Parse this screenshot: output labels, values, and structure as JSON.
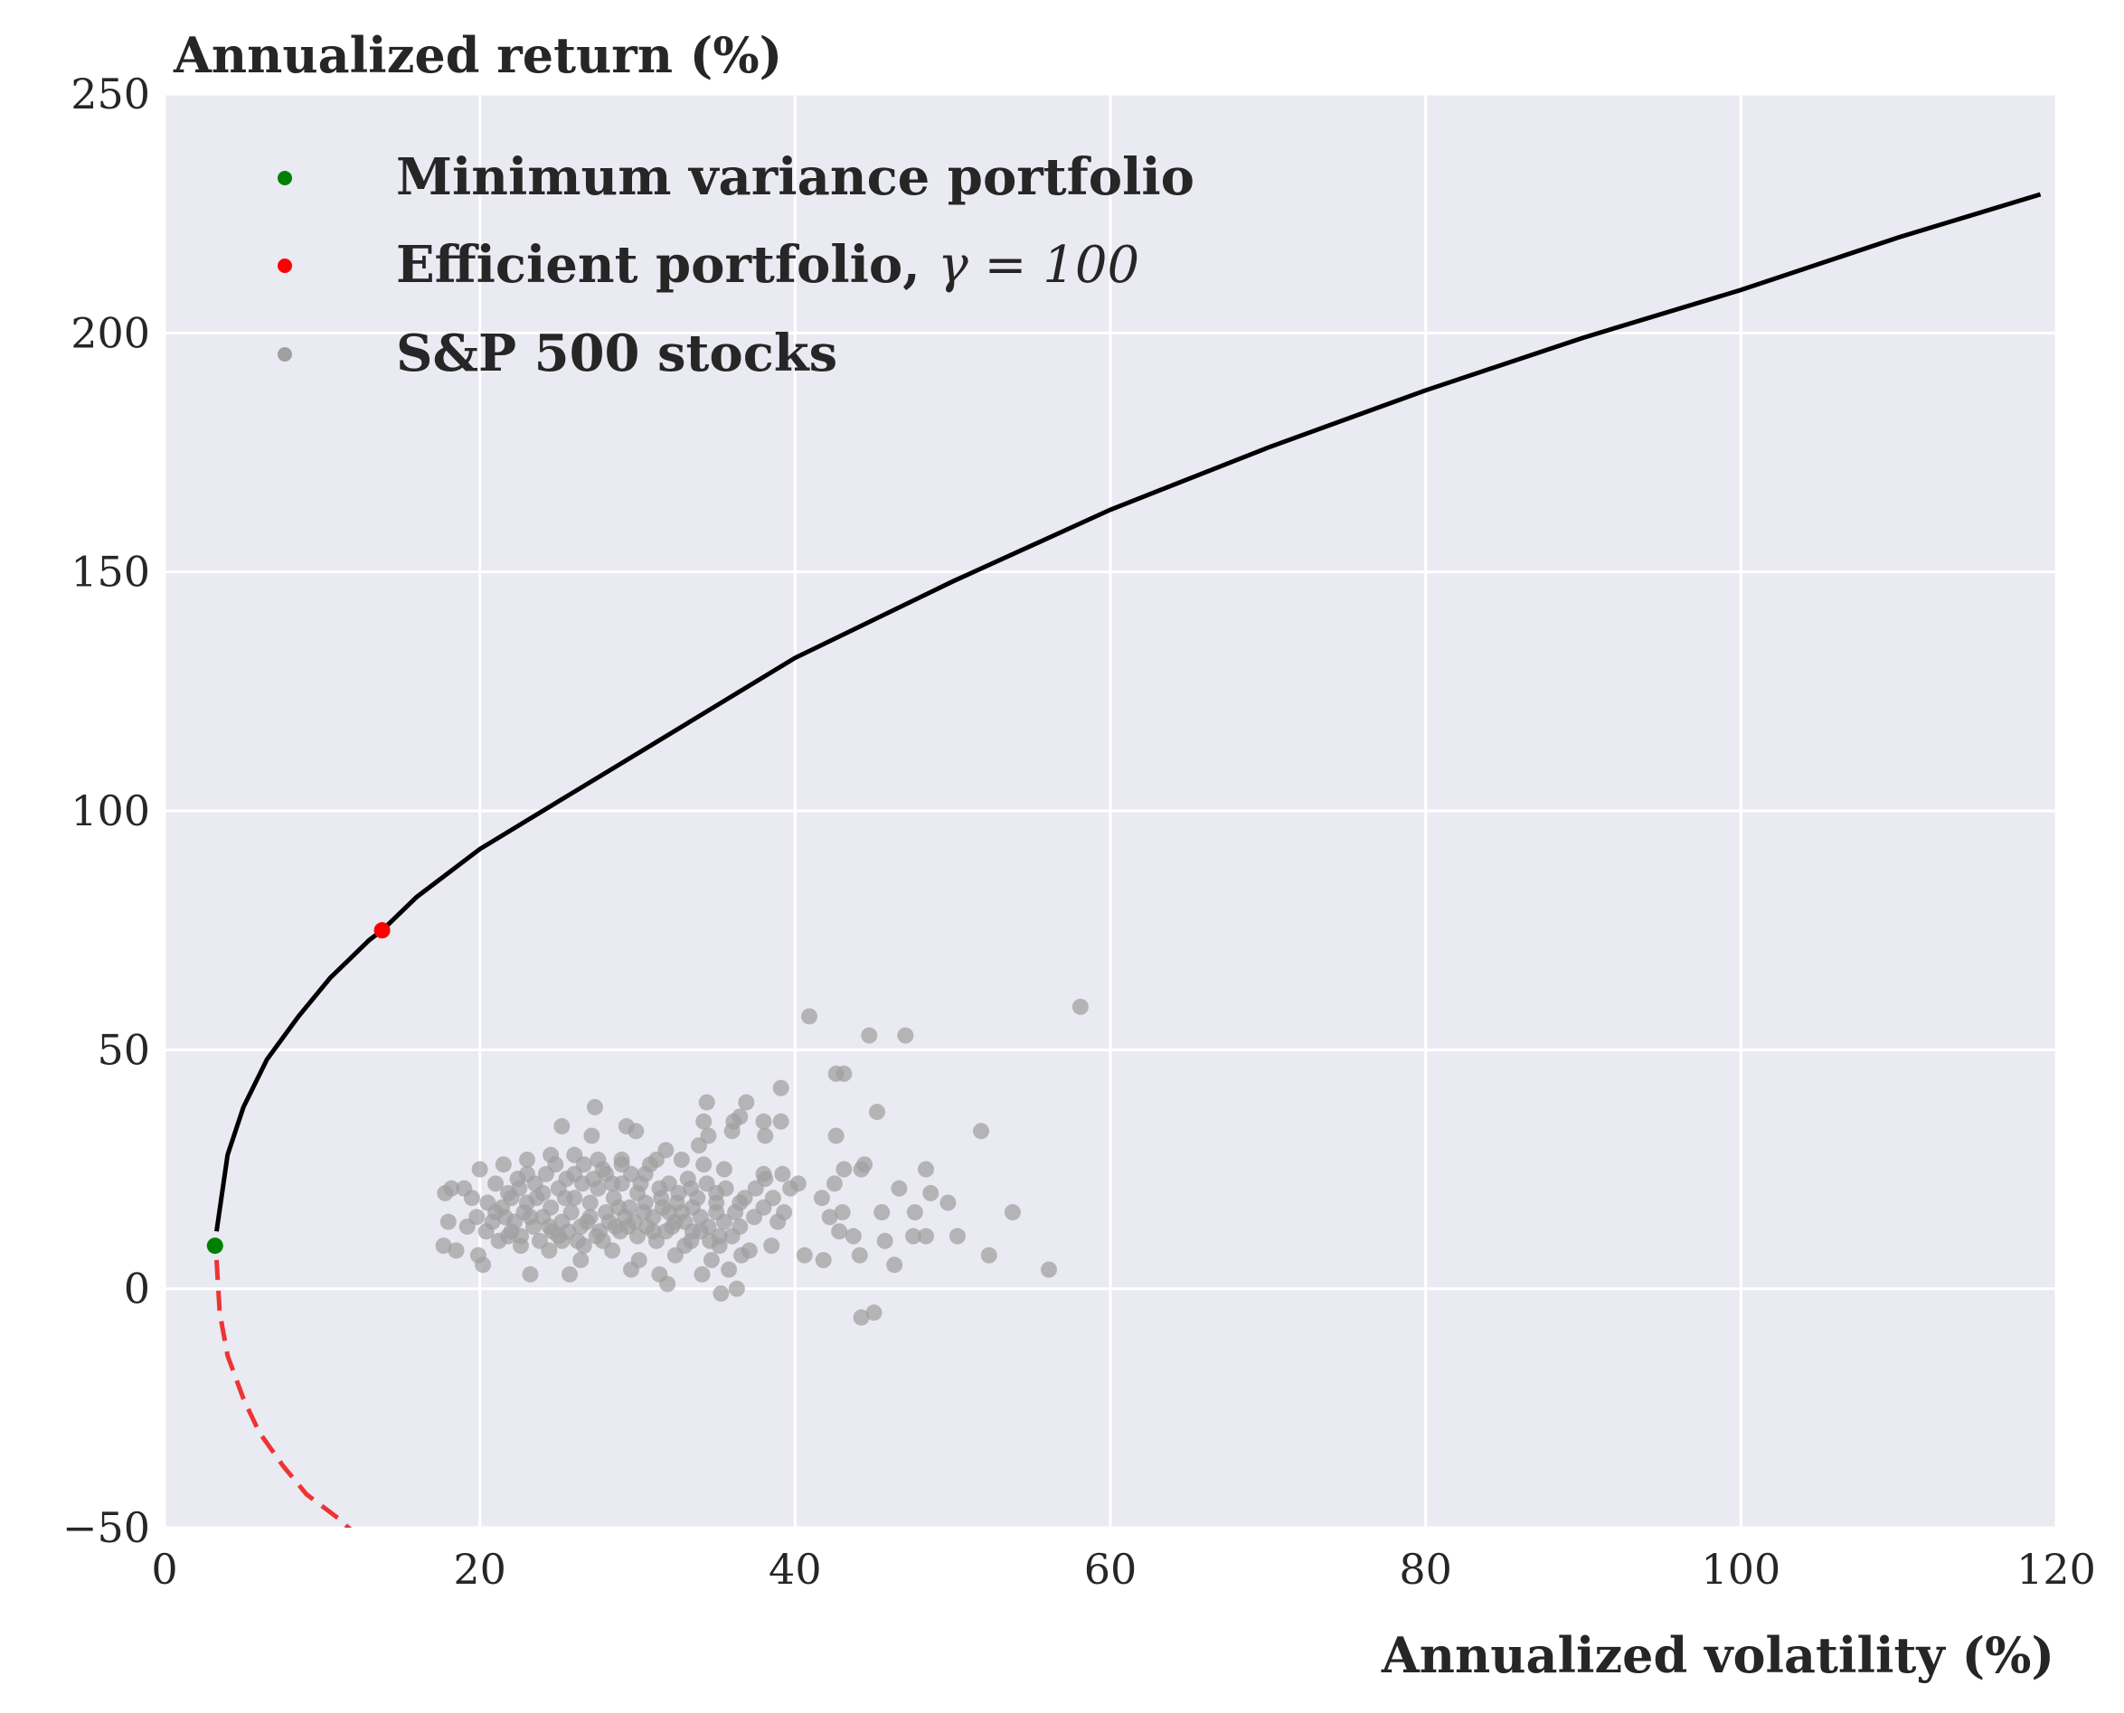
{
  "chart_data": {
    "type": "scatter",
    "ylabel": "Annualized return (%)",
    "xlabel": "Annualized volatility (%)",
    "xlim": [
      0,
      120
    ],
    "ylim": [
      -50,
      250
    ],
    "xticks": [
      0,
      20,
      40,
      60,
      80,
      100,
      120
    ],
    "yticks": [
      -50,
      0,
      50,
      100,
      150,
      200,
      250
    ],
    "xtick_labels": [
      "0",
      "20",
      "40",
      "60",
      "80",
      "100",
      "120"
    ],
    "ytick_labels": [
      "−50",
      "0",
      "50",
      "100",
      "150",
      "200",
      "250"
    ],
    "grid": true,
    "legend_placement": "top-left",
    "legend": [
      {
        "label": "Minimum variance portfolio",
        "color": "#008000"
      },
      {
        "label": "Efficient portfolio, ",
        "math": "γ = 100",
        "color": "#ff0000"
      },
      {
        "label": "S&P 500 stocks",
        "color": "#a0a0a0"
      }
    ],
    "efficient_frontier": {
      "color": "#000000",
      "x": [
        3.3,
        4.0,
        5.0,
        6.5,
        8.5,
        10.5,
        13.0,
        13.8,
        16.0,
        20.0,
        25.0,
        30.0,
        40.0,
        50.0,
        60.0,
        70.0,
        80.0,
        90.0,
        100.0,
        110.0,
        119.0
      ],
      "y": [
        12,
        28,
        38,
        48,
        57,
        65,
        73,
        75,
        82,
        92,
        102,
        112,
        132,
        148,
        163,
        176,
        188,
        199,
        209,
        220,
        229
      ]
    },
    "inefficient_frontier": {
      "color": "#ee3333",
      "style": "dashed",
      "x": [
        3.3,
        3.5,
        4.0,
        5.0,
        6.0,
        7.5,
        9.0,
        11.0,
        12.0
      ],
      "y": [
        6,
        -5,
        -14,
        -23,
        -30,
        -37,
        -43,
        -48,
        -51
      ]
    },
    "min_variance_point": {
      "x": 3.2,
      "y": 9,
      "color": "#008000"
    },
    "efficient_point": {
      "x": 13.8,
      "y": 75,
      "color": "#ff0000"
    },
    "stocks": {
      "color": "#a0a0a0",
      "points": [
        [
          58.1,
          59
        ],
        [
          40.9,
          57
        ],
        [
          44.7,
          53
        ],
        [
          47.0,
          53
        ],
        [
          42.6,
          45
        ],
        [
          43.1,
          45
        ],
        [
          39.1,
          42
        ],
        [
          36.9,
          39
        ],
        [
          34.4,
          39
        ],
        [
          45.2,
          37
        ],
        [
          36.5,
          36
        ],
        [
          36.1,
          35
        ],
        [
          34.2,
          35
        ],
        [
          39.1,
          35
        ],
        [
          38.0,
          35
        ],
        [
          27.3,
          38
        ],
        [
          29.3,
          34
        ],
        [
          25.2,
          34
        ],
        [
          29.9,
          33
        ],
        [
          51.8,
          33
        ],
        [
          42.6,
          32
        ],
        [
          38.1,
          32
        ],
        [
          36.0,
          33
        ],
        [
          34.5,
          32
        ],
        [
          27.1,
          32
        ],
        [
          33.9,
          30
        ],
        [
          31.8,
          29
        ],
        [
          31.2,
          27
        ],
        [
          32.8,
          27
        ],
        [
          34.2,
          26
        ],
        [
          35.5,
          25
        ],
        [
          38.0,
          24
        ],
        [
          39.2,
          24
        ],
        [
          40.2,
          22
        ],
        [
          42.5,
          22
        ],
        [
          43.1,
          25
        ],
        [
          44.2,
          25
        ],
        [
          48.3,
          25
        ],
        [
          46.6,
          21
        ],
        [
          48.6,
          20
        ],
        [
          49.7,
          18
        ],
        [
          53.8,
          16
        ],
        [
          47.6,
          16
        ],
        [
          45.5,
          16
        ],
        [
          43.0,
          16
        ],
        [
          42.2,
          15
        ],
        [
          41.7,
          19
        ],
        [
          39.7,
          21
        ],
        [
          38.1,
          23
        ],
        [
          37.5,
          21
        ],
        [
          36.5,
          18
        ],
        [
          35.0,
          20
        ],
        [
          33.4,
          21
        ],
        [
          32.0,
          22
        ],
        [
          30.5,
          24
        ],
        [
          29.0,
          26
        ],
        [
          27.5,
          27
        ],
        [
          26.0,
          28
        ],
        [
          24.5,
          28
        ],
        [
          23.0,
          27
        ],
        [
          21.5,
          26
        ],
        [
          20.0,
          25
        ],
        [
          19.0,
          21
        ],
        [
          17.8,
          20
        ],
        [
          18.2,
          21
        ],
        [
          19.5,
          19
        ],
        [
          20.5,
          18
        ],
        [
          21.0,
          16
        ],
        [
          19.8,
          15
        ],
        [
          19.2,
          13
        ],
        [
          18.0,
          14
        ],
        [
          17.7,
          9
        ],
        [
          18.5,
          8
        ],
        [
          19.9,
          7
        ],
        [
          20.2,
          5
        ],
        [
          21.8,
          11
        ],
        [
          22.6,
          9
        ],
        [
          23.2,
          3
        ],
        [
          24.4,
          8
        ],
        [
          25.2,
          10
        ],
        [
          25.7,
          3
        ],
        [
          26.4,
          6
        ],
        [
          26.6,
          9
        ],
        [
          27.8,
          10
        ],
        [
          28.4,
          8
        ],
        [
          28.9,
          12
        ],
        [
          29.6,
          4
        ],
        [
          30.1,
          6
        ],
        [
          31.4,
          3
        ],
        [
          31.9,
          1
        ],
        [
          32.4,
          7
        ],
        [
          33.0,
          9
        ],
        [
          33.5,
          12
        ],
        [
          34.1,
          3
        ],
        [
          34.7,
          6
        ],
        [
          35.2,
          9
        ],
        [
          35.3,
          -1
        ],
        [
          35.8,
          4
        ],
        [
          36.3,
          0
        ],
        [
          36.6,
          7
        ],
        [
          37.1,
          8
        ],
        [
          38.5,
          9
        ],
        [
          38.9,
          14
        ],
        [
          39.3,
          16
        ],
        [
          40.6,
          7
        ],
        [
          41.8,
          6
        ],
        [
          42.8,
          12
        ],
        [
          43.7,
          11
        ],
        [
          44.1,
          7
        ],
        [
          44.2,
          -6
        ],
        [
          45.0,
          -5
        ],
        [
          45.7,
          10
        ],
        [
          46.3,
          5
        ],
        [
          47.5,
          11
        ],
        [
          48.3,
          11
        ],
        [
          50.3,
          11
        ],
        [
          52.3,
          7
        ],
        [
          56.1,
          4
        ],
        [
          44.4,
          26
        ],
        [
          22.0,
          19
        ],
        [
          22.5,
          21
        ],
        [
          23.0,
          18
        ],
        [
          23.5,
          22
        ],
        [
          24.0,
          20
        ],
        [
          24.5,
          17
        ],
        [
          25.0,
          21
        ],
        [
          25.5,
          23
        ],
        [
          26.0,
          19
        ],
        [
          26.5,
          22
        ],
        [
          27.0,
          18
        ],
        [
          27.5,
          21
        ],
        [
          28.0,
          24
        ],
        [
          28.5,
          19
        ],
        [
          29.0,
          22
        ],
        [
          29.5,
          17
        ],
        [
          30.0,
          20
        ],
        [
          30.5,
          18
        ],
        [
          31.0,
          15
        ],
        [
          31.5,
          19
        ],
        [
          32.0,
          16
        ],
        [
          32.5,
          18
        ],
        [
          33.0,
          14
        ],
        [
          33.5,
          17
        ],
        [
          34.0,
          15
        ],
        [
          34.5,
          13
        ],
        [
          35.0,
          16
        ],
        [
          35.5,
          14
        ],
        [
          36.0,
          11
        ],
        [
          36.5,
          13
        ],
        [
          22.2,
          14
        ],
        [
          22.8,
          16
        ],
        [
          23.4,
          13
        ],
        [
          24.0,
          15
        ],
        [
          24.6,
          12
        ],
        [
          25.2,
          14
        ],
        [
          25.8,
          16
        ],
        [
          26.4,
          13
        ],
        [
          27.0,
          15
        ],
        [
          27.6,
          12
        ],
        [
          28.2,
          14
        ],
        [
          28.8,
          17
        ],
        [
          29.4,
          13
        ],
        [
          30.0,
          11
        ],
        [
          30.6,
          13
        ],
        [
          31.2,
          10
        ],
        [
          31.8,
          12
        ],
        [
          32.4,
          14
        ],
        [
          21.0,
          22
        ],
        [
          21.4,
          17
        ],
        [
          21.8,
          20
        ],
        [
          22.4,
          23
        ],
        [
          23.0,
          24
        ],
        [
          23.6,
          19
        ],
        [
          24.2,
          24
        ],
        [
          24.8,
          26
        ],
        [
          25.4,
          19
        ],
        [
          26.0,
          24
        ],
        [
          26.6,
          26
        ],
        [
          27.2,
          23
        ],
        [
          27.8,
          25
        ],
        [
          28.4,
          22
        ],
        [
          29.0,
          27
        ],
        [
          29.6,
          24
        ],
        [
          30.2,
          22
        ],
        [
          30.8,
          26
        ],
        [
          31.4,
          21
        ],
        [
          32.6,
          20
        ],
        [
          33.2,
          23
        ],
        [
          33.8,
          19
        ],
        [
          34.4,
          22
        ],
        [
          35.0,
          18
        ],
        [
          35.6,
          21
        ],
        [
          36.2,
          16
        ],
        [
          36.8,
          19
        ],
        [
          37.4,
          15
        ],
        [
          38.0,
          17
        ],
        [
          38.6,
          19
        ],
        [
          20.4,
          12
        ],
        [
          20.8,
          14
        ],
        [
          21.2,
          10
        ],
        [
          21.6,
          15
        ],
        [
          22.0,
          12
        ],
        [
          22.6,
          11
        ],
        [
          23.2,
          15
        ],
        [
          23.8,
          10
        ],
        [
          24.4,
          13
        ],
        [
          25.0,
          11
        ],
        [
          25.6,
          12
        ],
        [
          26.2,
          10
        ],
        [
          26.8,
          14
        ],
        [
          27.4,
          11
        ],
        [
          28.0,
          16
        ],
        [
          28.6,
          13
        ],
        [
          29.2,
          15
        ],
        [
          29.8,
          14
        ],
        [
          30.4,
          16
        ],
        [
          31.0,
          12
        ],
        [
          31.6,
          17
        ],
        [
          32.2,
          13
        ],
        [
          32.8,
          16
        ],
        [
          33.4,
          10
        ],
        [
          34.0,
          12
        ],
        [
          34.6,
          10
        ],
        [
          35.2,
          11
        ]
      ]
    }
  }
}
